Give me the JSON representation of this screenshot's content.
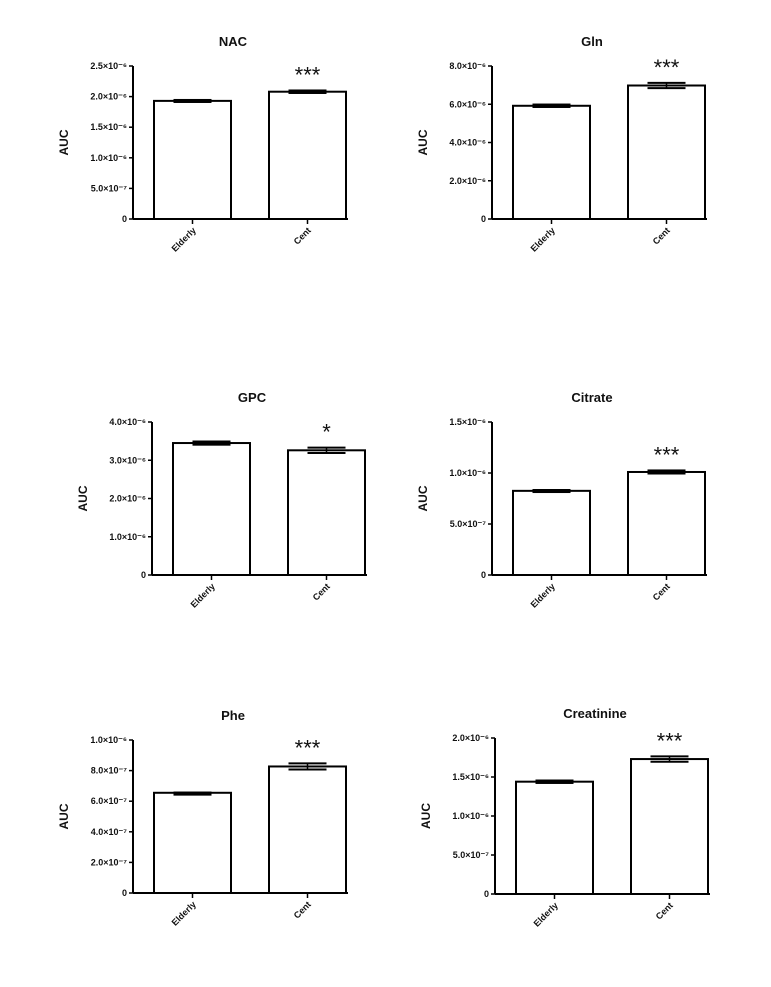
{
  "chart_data": [
    {
      "type": "bar",
      "title": "NAC",
      "ylabel": "AUC",
      "ylim": [
        0,
        2.5e-06
      ],
      "ticks": [
        {
          "value": 0,
          "label": "0"
        },
        {
          "value": 5e-07,
          "label": "5.0×10⁻⁷"
        },
        {
          "value": 1e-06,
          "label": "1.0×10⁻⁶"
        },
        {
          "value": 1.5e-06,
          "label": "1.5×10⁻⁶"
        },
        {
          "value": 2e-06,
          "label": "2.0×10⁻⁶"
        },
        {
          "value": 2.5e-06,
          "label": "2.5×10⁻⁶"
        }
      ],
      "categories": [
        "Elderly",
        "Cent"
      ],
      "values": [
        1.93e-06,
        2.08e-06
      ],
      "errors": [
        1.5e-08,
        2e-08
      ],
      "significance": [
        "",
        "***"
      ]
    },
    {
      "type": "bar",
      "title": "Gln",
      "ylabel": "AUC",
      "ylim": [
        0,
        8e-06
      ],
      "ticks": [
        {
          "value": 0,
          "label": "0"
        },
        {
          "value": 2e-06,
          "label": "2.0×10⁻⁶"
        },
        {
          "value": 4e-06,
          "label": "4.0×10⁻⁶"
        },
        {
          "value": 6e-06,
          "label": "6.0×10⁻⁶"
        },
        {
          "value": 8e-06,
          "label": "8.0×10⁻⁶"
        }
      ],
      "categories": [
        "Elderly",
        "Cent"
      ],
      "values": [
        5.92e-06,
        6.98e-06
      ],
      "errors": [
        6e-08,
        1.4e-07
      ],
      "significance": [
        "",
        "***"
      ]
    },
    {
      "type": "bar",
      "title": "GPC",
      "ylabel": "AUC",
      "ylim": [
        0,
        4e-06
      ],
      "ticks": [
        {
          "value": 0,
          "label": "0"
        },
        {
          "value": 1e-06,
          "label": "1.0×10⁻⁶"
        },
        {
          "value": 2e-06,
          "label": "2.0×10⁻⁶"
        },
        {
          "value": 3e-06,
          "label": "3.0×10⁻⁶"
        },
        {
          "value": 4e-06,
          "label": "4.0×10⁻⁶"
        }
      ],
      "categories": [
        "Elderly",
        "Cent"
      ],
      "values": [
        3.45e-06,
        3.26e-06
      ],
      "errors": [
        4e-08,
        7e-08
      ],
      "significance": [
        "",
        "*"
      ]
    },
    {
      "type": "bar",
      "title": "Citrate",
      "ylabel": "AUC",
      "ylim": [
        0,
        1.5e-06
      ],
      "ticks": [
        {
          "value": 0,
          "label": "0"
        },
        {
          "value": 5e-07,
          "label": "5.0×10⁻⁷"
        },
        {
          "value": 1e-06,
          "label": "1.0×10⁻⁶"
        },
        {
          "value": 1.5e-06,
          "label": "1.5×10⁻⁶"
        }
      ],
      "categories": [
        "Elderly",
        "Cent"
      ],
      "values": [
        8.25e-07,
        1.01e-06
      ],
      "errors": [
        8e-09,
        1.5e-08
      ],
      "significance": [
        "",
        "***"
      ]
    },
    {
      "type": "bar",
      "title": "Phe",
      "ylabel": "AUC",
      "ylim": [
        0,
        1e-06
      ],
      "ticks": [
        {
          "value": 0,
          "label": "0"
        },
        {
          "value": 2e-07,
          "label": "2.0×10⁻⁷"
        },
        {
          "value": 4e-07,
          "label": "4.0×10⁻⁷"
        },
        {
          "value": 6e-07,
          "label": "6.0×10⁻⁷"
        },
        {
          "value": 8e-07,
          "label": "8.0×10⁻⁷"
        },
        {
          "value": 1e-06,
          "label": "1.0×10⁻⁶"
        }
      ],
      "categories": [
        "Elderly",
        "Cent"
      ],
      "values": [
        6.55e-07,
        8.27e-07
      ],
      "errors": [
        1e-09,
        2e-08
      ],
      "significance": [
        "",
        "***"
      ]
    },
    {
      "type": "bar",
      "title": "Creatinine",
      "ylabel": "AUC",
      "ylim": [
        0,
        2e-06
      ],
      "ticks": [
        {
          "value": 0,
          "label": "0"
        },
        {
          "value": 5e-07,
          "label": "5.0×10⁻⁷"
        },
        {
          "value": 1e-06,
          "label": "1.0×10⁻⁶"
        },
        {
          "value": 1.5e-06,
          "label": "1.5×10⁻⁶"
        },
        {
          "value": 2e-06,
          "label": "2.0×10⁻⁶"
        }
      ],
      "categories": [
        "Elderly",
        "Cent"
      ],
      "values": [
        1.44e-06,
        1.73e-06
      ],
      "errors": [
        1.5e-08,
        3.5e-08
      ],
      "significance": [
        "",
        "***"
      ]
    }
  ],
  "colors": {
    "bar_fill": "#ffffff",
    "stroke": "#000000"
  }
}
